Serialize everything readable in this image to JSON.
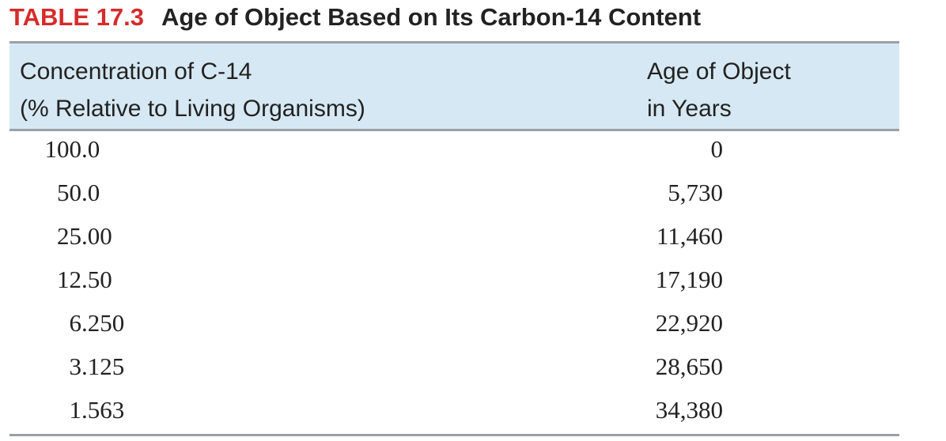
{
  "header": {
    "label": "TABLE 17.3",
    "title": "Age of Object Based on Its Carbon-14 Content"
  },
  "table": {
    "columns": [
      [
        "Concentration of C-14",
        "(% Relative to Living Organisms)"
      ],
      [
        "Age of Object",
        "in Years"
      ]
    ],
    "rows": [
      [
        "100.0",
        "0"
      ],
      [
        "50.0",
        "5,730"
      ],
      [
        "25.00",
        "11,460"
      ],
      [
        "12.50",
        "17,190"
      ],
      [
        "6.250",
        "22,920"
      ],
      [
        "3.125",
        "28,650"
      ],
      [
        "1.563",
        "34,380"
      ]
    ]
  }
}
